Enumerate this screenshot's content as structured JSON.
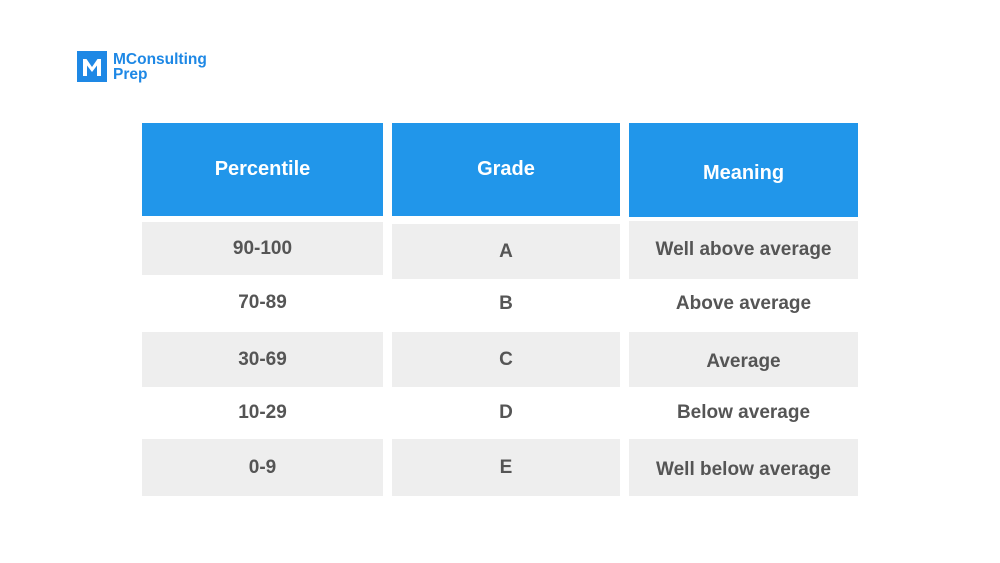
{
  "brand": {
    "line1": "MConsulting",
    "line2": "Prep",
    "color": "#1e88e5",
    "icon": "m-logo-icon"
  },
  "table": {
    "headers": [
      "Percentile",
      "Grade",
      "Meaning"
    ],
    "rows": [
      [
        "90-100",
        "A",
        "Well above average"
      ],
      [
        "70-89",
        "B",
        "Above average"
      ],
      [
        "30-69",
        "C",
        "Average"
      ],
      [
        "10-29",
        "D",
        "Below average"
      ],
      [
        "0-9",
        "E",
        "Well below average"
      ]
    ],
    "header_color": "#2196ea",
    "stripe_color": "#eeeeee",
    "text_color": "#555555"
  }
}
